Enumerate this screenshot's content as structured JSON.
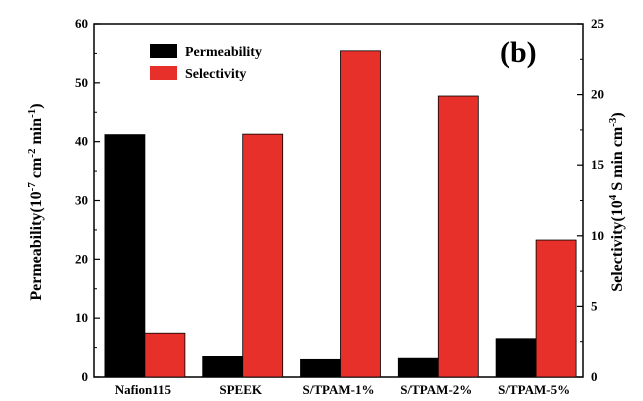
{
  "chart_data": {
    "type": "bar",
    "panel_label": "(b)",
    "categories": [
      "Nafion115",
      "SPEEK",
      "S/TPAM-1%",
      "S/TPAM-2%",
      "S/TPAM-5%"
    ],
    "series": [
      {
        "name": "Permeability",
        "axis": "left",
        "color": "#000000",
        "values": [
          41.2,
          3.5,
          3.0,
          3.2,
          6.5
        ]
      },
      {
        "name": "Selectivity",
        "axis": "right",
        "color": "#e8302a",
        "values": [
          3.1,
          17.2,
          23.1,
          19.9,
          9.7
        ]
      }
    ],
    "left_axis": {
      "label_prefix": "Permeability(10",
      "label_sup1": "-7",
      "label_mid": " cm",
      "label_sup2": "-2",
      "label_end": " min",
      "label_sup3": "-1",
      "label_close": ")",
      "ylim": [
        0,
        60
      ],
      "ticks": [
        0,
        10,
        20,
        30,
        40,
        50,
        60
      ]
    },
    "right_axis": {
      "label_prefix": "Selectivity(10",
      "label_sup1": "4",
      "label_mid": " S min cm",
      "label_sup2": "-3",
      "label_close": ")",
      "ylim": [
        0,
        25
      ],
      "ticks": [
        0,
        5,
        10,
        15,
        20,
        25
      ]
    },
    "legend": {
      "placement": "top-left",
      "entries": [
        "Permeability",
        "Selectivity"
      ]
    }
  }
}
